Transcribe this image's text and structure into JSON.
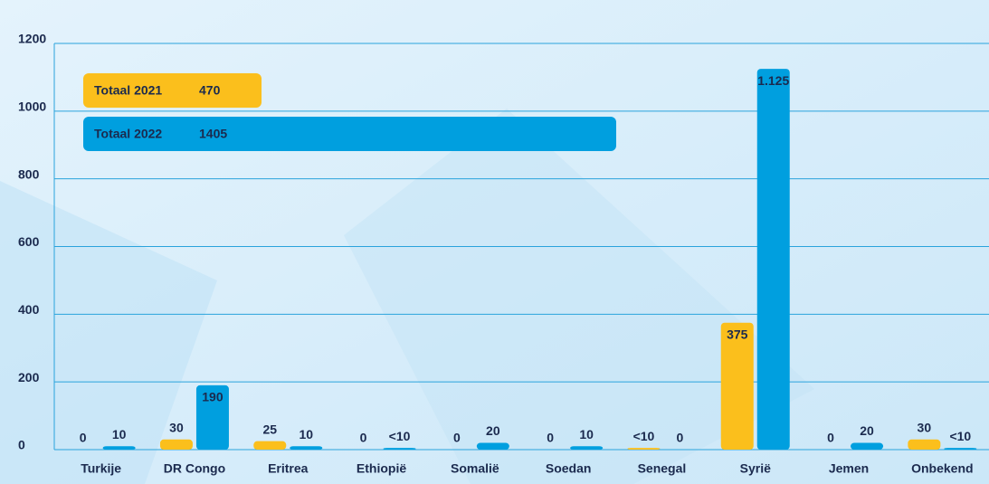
{
  "chart_data": {
    "type": "bar",
    "categories": [
      "Turkije",
      "DR Congo",
      "Eritrea",
      "Ethiopië",
      "Somalië",
      "Soedan",
      "Senegal",
      "Syrië",
      "Jemen",
      "Onbekend"
    ],
    "series": [
      {
        "name": "Totaal 2021",
        "total": 470,
        "color": "#fbbf1c",
        "values": [
          0,
          30,
          25,
          0,
          0,
          0,
          5,
          375,
          0,
          30
        ],
        "value_labels": [
          "0",
          "30",
          "25",
          "0",
          "0",
          "0",
          "<10",
          "375",
          "0",
          "30"
        ]
      },
      {
        "name": "Totaal 2022",
        "total": 1405,
        "color": "#009fdf",
        "values": [
          10,
          190,
          10,
          5,
          20,
          10,
          0,
          1125,
          20,
          5
        ],
        "value_labels": [
          "10",
          "190",
          "10",
          "<10",
          "20",
          "10",
          "0",
          "1.125",
          "20",
          "<10"
        ]
      }
    ],
    "ylim": [
      0,
      1200
    ],
    "yticks": [
      0,
      200,
      400,
      600,
      800,
      1000,
      1200
    ],
    "grid": true
  }
}
